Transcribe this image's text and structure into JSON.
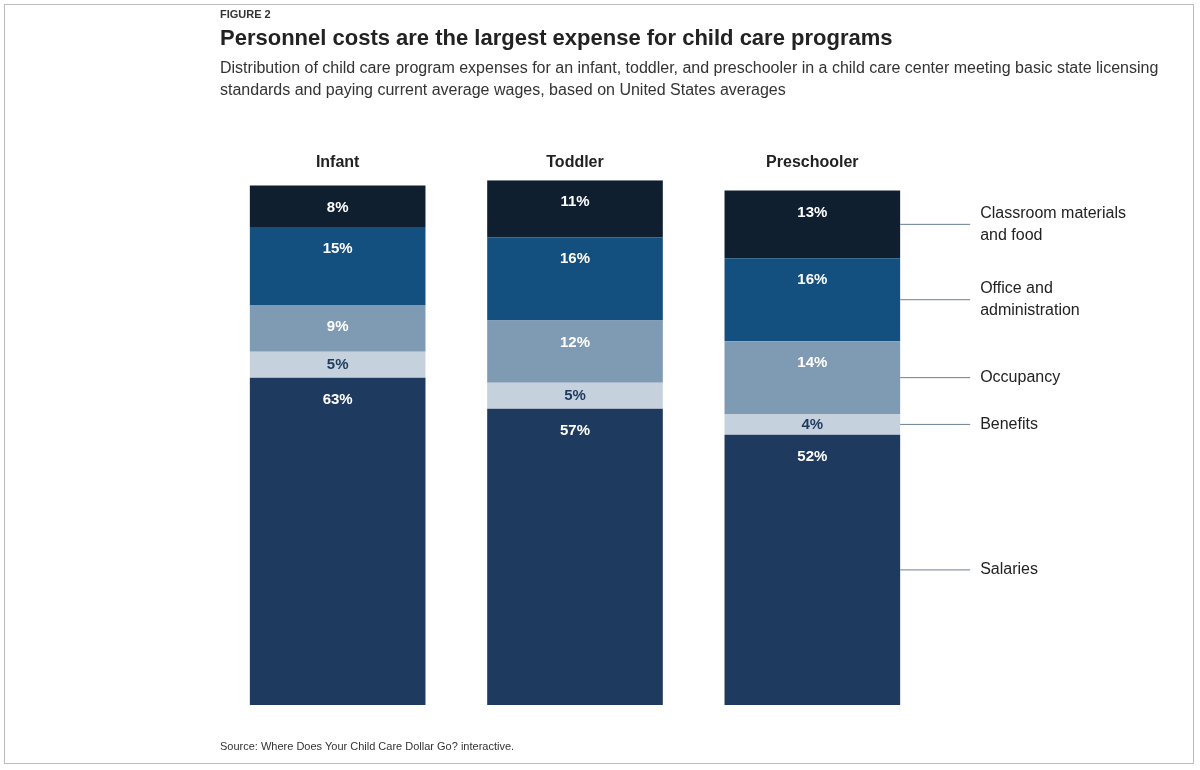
{
  "chart_data": {
    "type": "bar",
    "stacked": true,
    "legend": false,
    "grid": false,
    "tick_labels": "x",
    "title": "Personnel costs are the largest expense for child care programs",
    "subtitle": "Distribution of child care program expenses for an infant, toddler, and preschooler in a child care center meeting basic state licensing standards and paying current average wages, based on United States averages",
    "annotations": [
      "FIGURE 2",
      "Source: Where Does Your Child Care Dollar Go? interactive."
    ],
    "categories": [
      "Infant",
      "Toddler",
      "Preschooler"
    ],
    "series": [
      {
        "name": "Salaries",
        "color": "#1f3a5f",
        "values": [
          63,
          57,
          52
        ],
        "value_labels": [
          "63%",
          "57%",
          "52%"
        ]
      },
      {
        "name": "Benefits",
        "color": "#c5d2de",
        "values": [
          5,
          5,
          4
        ],
        "value_labels": [
          "5%",
          "5%",
          "4%"
        ]
      },
      {
        "name": "Occupancy",
        "color": "#7f9ab3",
        "values": [
          9,
          12,
          14
        ],
        "value_labels": [
          "9%",
          "12%",
          "14%"
        ]
      },
      {
        "name": "Office and administration",
        "color": "#14507f",
        "values": [
          15,
          16,
          16
        ],
        "value_labels": [
          "15%",
          "16%",
          "16%"
        ]
      },
      {
        "name": "Classroom materials and food",
        "color": "#0f1f30",
        "values": [
          8,
          11,
          13
        ],
        "value_labels": [
          "8%",
          "11%",
          "13%"
        ]
      }
    ]
  }
}
